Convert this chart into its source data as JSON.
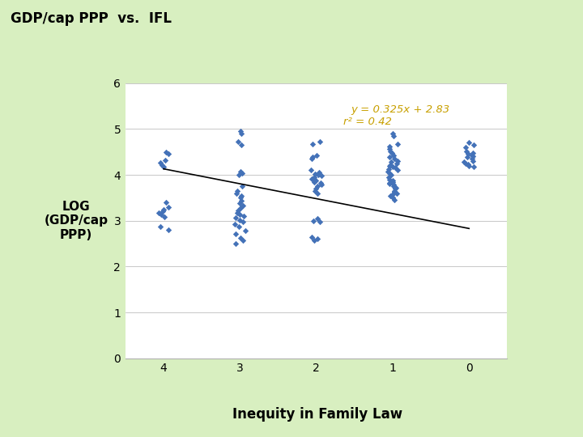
{
  "title": "GDP/cap PPP  vs.  IFL",
  "ylabel": "LOG\n(GDP/cap\nPPP)",
  "xlabel": "Inequity in Family Law",
  "background_color": "#d8efc0",
  "plot_bg_color": "#ffffff",
  "marker_color": "#4472b8",
  "line_color": "#000000",
  "equation_text": "y = 0.325x + 2.83",
  "r2_text": "r² = 0.42",
  "equation_color": "#c8a000",
  "ylim": [
    0,
    6
  ],
  "x_ticks": [
    4,
    3,
    2,
    1,
    0
  ],
  "scatter_data": {
    "4": [
      2.8,
      2.88,
      3.08,
      3.13,
      3.17,
      3.2,
      3.25,
      3.3,
      3.4,
      4.17,
      4.22,
      4.27,
      4.32,
      4.45,
      4.5
    ],
    "3": [
      2.5,
      2.57,
      2.63,
      2.72,
      2.78,
      2.88,
      2.93,
      2.98,
      3.02,
      3.07,
      3.1,
      3.13,
      3.17,
      3.22,
      3.28,
      3.33,
      3.38,
      3.43,
      3.5,
      3.55,
      3.6,
      3.65,
      3.75,
      4.0,
      4.03,
      4.07,
      4.65,
      4.72,
      4.9,
      4.95
    ],
    "2": [
      2.57,
      2.6,
      2.65,
      2.97,
      3.0,
      3.05,
      3.6,
      3.65,
      3.7,
      3.75,
      3.78,
      3.82,
      3.85,
      3.88,
      3.9,
      3.92,
      3.95,
      3.98,
      4.0,
      4.02,
      4.05,
      4.1,
      4.35,
      4.38,
      4.42,
      4.67,
      4.72
    ],
    "1": [
      3.45,
      3.5,
      3.55,
      3.58,
      3.6,
      3.63,
      3.65,
      3.7,
      3.72,
      3.75,
      3.78,
      3.8,
      3.82,
      3.85,
      3.87,
      3.9,
      3.95,
      4.0,
      4.03,
      4.07,
      4.1,
      4.13,
      4.15,
      4.18,
      4.2,
      4.22,
      4.25,
      4.28,
      4.3,
      4.35,
      4.38,
      4.42,
      4.48,
      4.52,
      4.57,
      4.62,
      4.67,
      4.85,
      4.9
    ],
    "0": [
      4.18,
      4.2,
      4.23,
      4.25,
      4.28,
      4.3,
      4.35,
      4.38,
      4.4,
      4.43,
      4.45,
      4.48,
      4.52,
      4.6,
      4.65,
      4.7
    ]
  },
  "line_x": [
    4.0,
    0.0
  ],
  "line_y": [
    4.13,
    2.83
  ]
}
